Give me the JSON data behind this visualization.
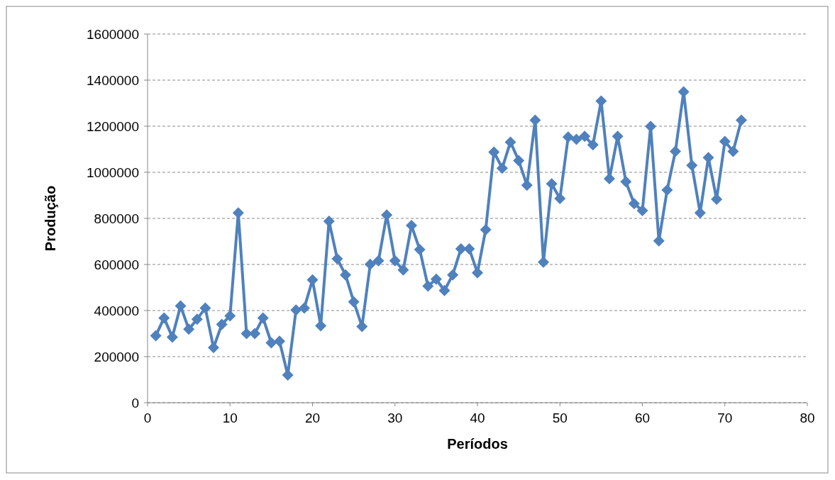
{
  "chart_data": {
    "type": "line",
    "xlabel": "Períodos",
    "ylabel": "Produção",
    "xlim": [
      0,
      80
    ],
    "xticks": [
      0,
      10,
      20,
      30,
      40,
      50,
      60,
      70,
      80
    ],
    "ylim": [
      0,
      1600000
    ],
    "yticks": [
      0,
      200000,
      400000,
      600000,
      800000,
      1000000,
      1200000,
      1400000,
      1600000
    ],
    "grid": "y",
    "marker": "diamond",
    "line_style": "solid",
    "series": [
      {
        "color": "#4f81bd",
        "x": [
          1,
          2,
          3,
          4,
          5,
          6,
          7,
          8,
          9,
          10,
          11,
          12,
          13,
          14,
          15,
          16,
          17,
          18,
          19,
          20,
          21,
          22,
          23,
          24,
          25,
          26,
          27,
          28,
          29,
          30,
          31,
          32,
          33,
          34,
          35,
          36,
          37,
          38,
          39,
          40,
          41,
          42,
          43,
          44,
          45,
          46,
          47,
          48,
          49,
          50,
          51,
          52,
          53,
          54,
          55,
          56,
          57,
          58,
          59,
          60,
          61,
          62,
          63,
          64,
          65,
          66,
          67,
          68,
          69,
          70,
          71,
          72
        ],
        "values": [
          291000,
          368000,
          285000,
          420000,
          319000,
          362000,
          411000,
          239000,
          340000,
          377000,
          824000,
          300000,
          300000,
          368000,
          260000,
          267000,
          120000,
          402000,
          411000,
          533000,
          334000,
          788000,
          625000,
          555000,
          438000,
          331000,
          601000,
          616000,
          815000,
          616000,
          576000,
          769000,
          665000,
          506000,
          536000,
          487000,
          555000,
          668000,
          668000,
          564000,
          751000,
          1088000,
          1018000,
          1131000,
          1051000,
          944000,
          1226000,
          610000,
          950000,
          886000,
          1153000,
          1143000,
          1156000,
          1119000,
          1309000,
          972000,
          1156000,
          959000,
          864000,
          834000,
          1199000,
          702000,
          923000,
          1091000,
          1349000,
          1030000,
          824000,
          1064000,
          883000,
          1134000,
          1091000,
          1226000
        ]
      }
    ]
  }
}
